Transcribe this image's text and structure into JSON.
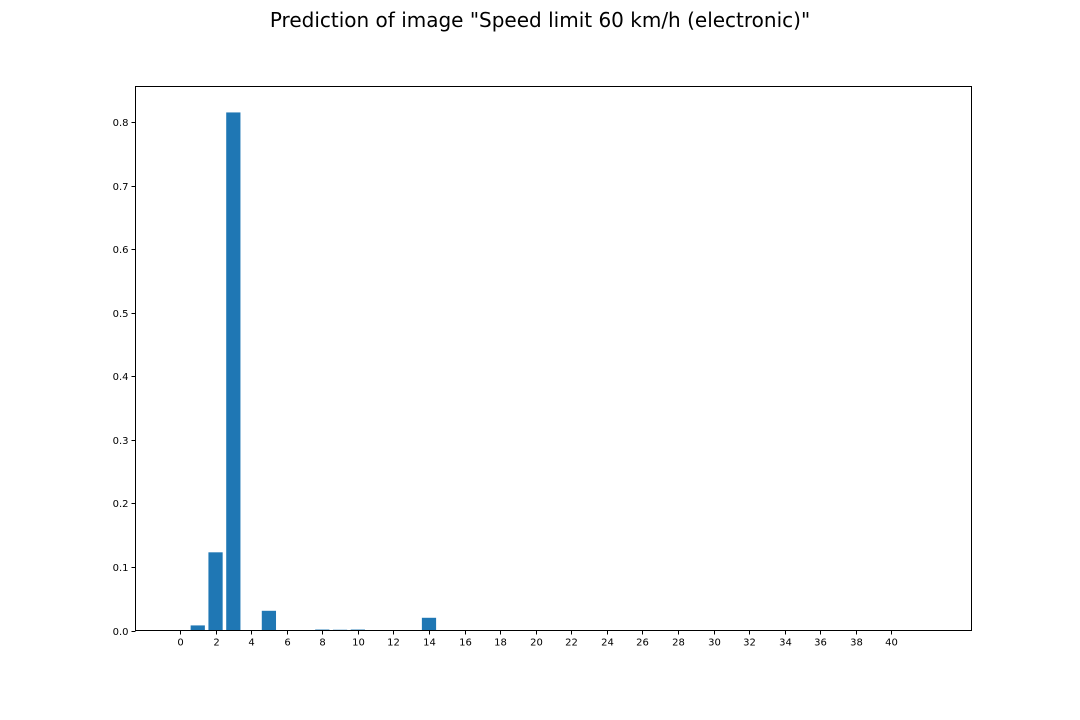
{
  "chart_data": {
    "type": "bar",
    "title": "Prediction of image \"Speed limit 60 km/h (electronic)\"",
    "xlabel": "",
    "ylabel": "",
    "x": [
      0,
      1,
      2,
      3,
      4,
      5,
      6,
      7,
      8,
      9,
      10,
      11,
      12,
      13,
      14,
      15,
      16,
      17,
      18,
      19,
      20,
      21,
      22,
      23,
      24,
      25,
      26,
      27,
      28,
      29,
      30,
      31,
      32,
      33,
      34,
      35,
      36,
      37,
      38,
      39,
      40,
      41,
      42
    ],
    "values": [
      0.0005,
      0.008,
      0.123,
      0.815,
      0.0005,
      0.031,
      0.0003,
      0.0002,
      0.0015,
      0.0012,
      0.0015,
      0.0003,
      0.0003,
      0.0002,
      0.02,
      0.0003,
      0.0002,
      0.0002,
      0.0002,
      0.0002,
      0.0002,
      0.0002,
      0.0002,
      0.0002,
      0.0002,
      0.0002,
      0.0002,
      0.0002,
      0.0002,
      0.0002,
      0.0002,
      0.0002,
      0.0002,
      0.0002,
      0.0002,
      0.0002,
      0.0002,
      0.0002,
      0.0002,
      0.0002,
      0.0002,
      0.0002,
      0.0002
    ],
    "xticks": [
      0,
      2,
      4,
      6,
      8,
      10,
      12,
      14,
      16,
      18,
      20,
      22,
      24,
      26,
      28,
      30,
      32,
      34,
      36,
      38,
      40
    ],
    "yticks": [
      0.0,
      0.1,
      0.2,
      0.3,
      0.4,
      0.5,
      0.6,
      0.7,
      0.8
    ],
    "xlim": [
      -2.5,
      44.5
    ],
    "ylim": [
      0,
      0.8558
    ],
    "grid": false,
    "bar_color": "#1f77b4"
  }
}
